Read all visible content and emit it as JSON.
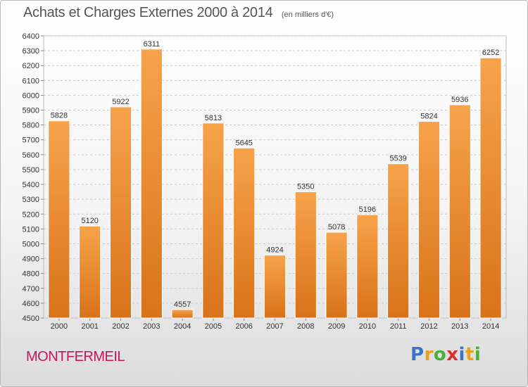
{
  "chart_data": {
    "type": "bar",
    "title": "Achats et Charges Externes 2000 à 2014",
    "subtitle": "(en milliers d'€)",
    "categories": [
      "2000",
      "2001",
      "2002",
      "2003",
      "2004",
      "2005",
      "2006",
      "2007",
      "2008",
      "2009",
      "2010",
      "2011",
      "2012",
      "2013",
      "2014"
    ],
    "values": [
      5828,
      5120,
      5922,
      6311,
      4557,
      5813,
      5645,
      4924,
      5350,
      5078,
      5196,
      5539,
      5824,
      5936,
      6252
    ],
    "ylim": [
      4500,
      6400
    ],
    "yticks": [
      4500,
      4600,
      4700,
      4800,
      4900,
      5000,
      5100,
      5200,
      5300,
      5400,
      5500,
      5600,
      5700,
      5800,
      5900,
      6000,
      6100,
      6200,
      6300,
      6400
    ],
    "grid": true,
    "xlabel": "",
    "ylabel": "",
    "bar_color_top": "#f7a34a",
    "bar_color_bottom": "#d8731a"
  },
  "footer": {
    "place": "MONTFERMEIL",
    "place_color": "#c2185b",
    "logo": {
      "p": "P",
      "r": "r",
      "o": "o",
      "x": "x",
      "i1": "i",
      "t": "t",
      "i2": "i"
    }
  }
}
